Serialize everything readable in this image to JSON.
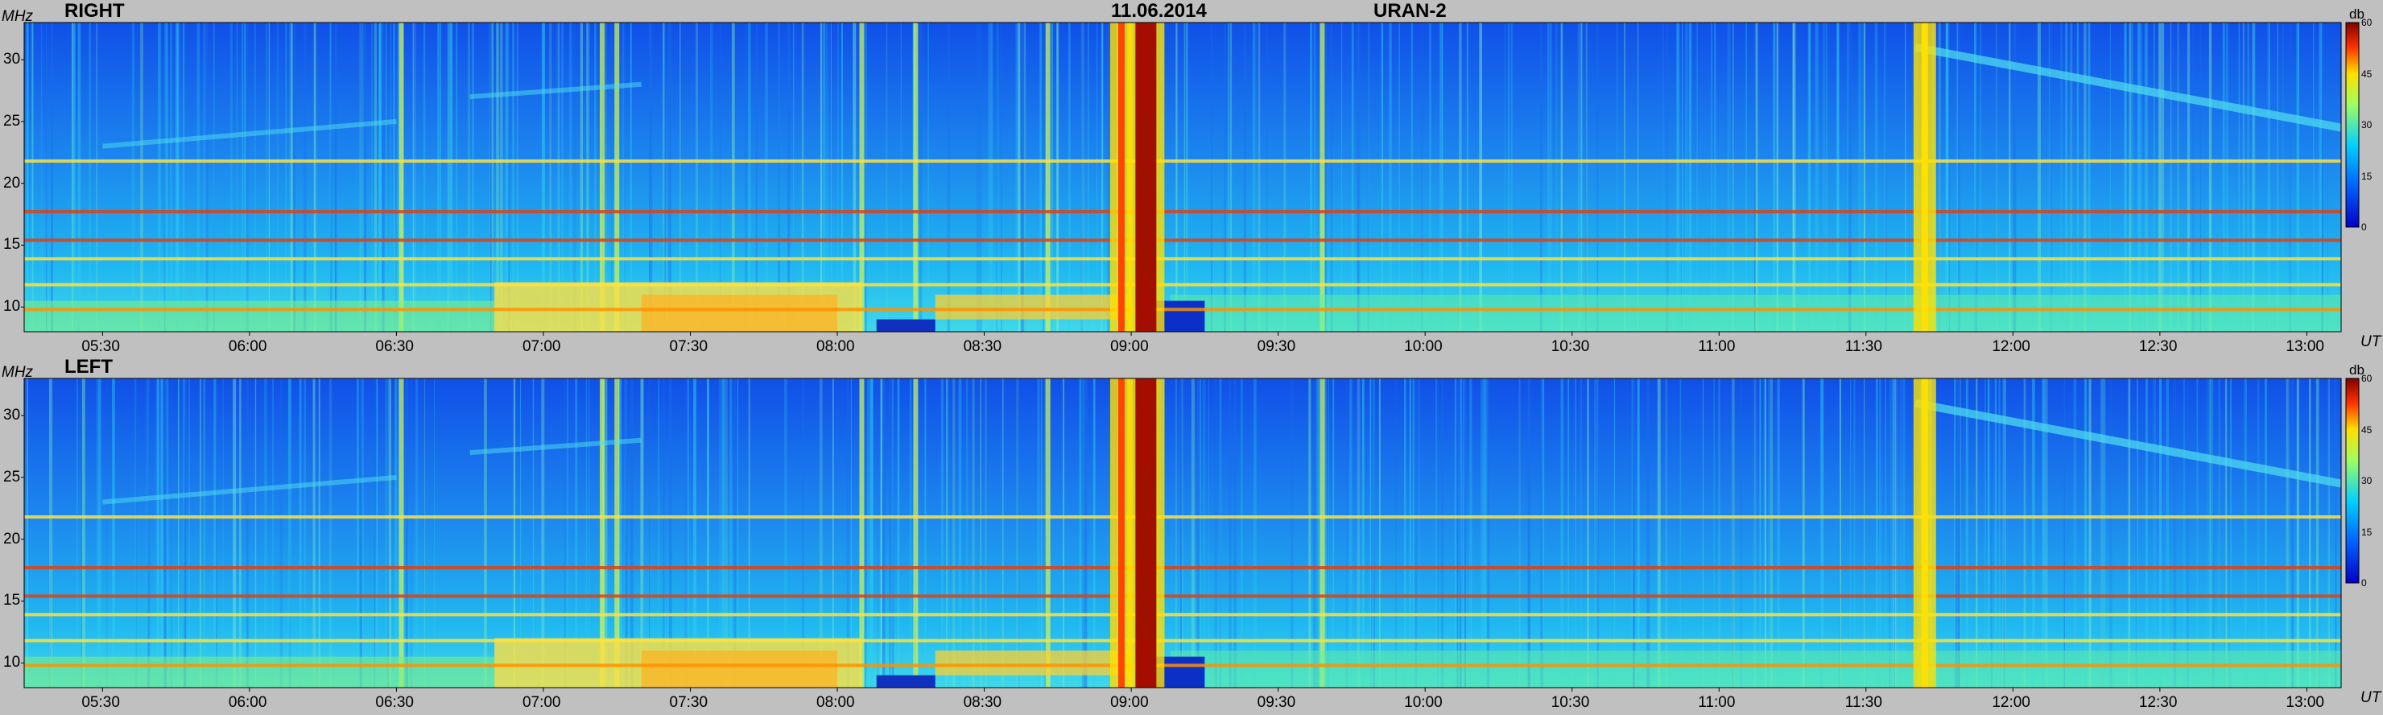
{
  "header": {
    "date": "11.06.2014",
    "instrument": "URAN-2"
  },
  "chart_data": [
    {
      "type": "heatmap",
      "title": "RIGHT",
      "ylabel": "MHz",
      "xlabel": "UT",
      "x_ticks": [
        "05:30",
        "06:00",
        "06:30",
        "07:00",
        "07:30",
        "08:00",
        "08:30",
        "09:00",
        "09:30",
        "10:00",
        "10:30",
        "11:00",
        "11:30",
        "12:00",
        "12:30",
        "13:00"
      ],
      "x_range": [
        "05:14",
        "13:07"
      ],
      "y_ticks": [
        10,
        15,
        20,
        25,
        30
      ],
      "ylim": [
        8,
        33
      ],
      "colorbar": {
        "label": "db",
        "ticks": [
          0,
          15,
          30,
          45,
          60
        ],
        "range": [
          0,
          60
        ]
      },
      "features": {
        "bursts": [
          {
            "time": "09:03",
            "intensity_db": 58
          },
          {
            "time": "08:58",
            "intensity_db": 52
          },
          {
            "time": "11:42",
            "intensity_db": 45
          }
        ],
        "interference_lines_mhz": [
          9.8,
          11.8,
          13.9,
          15.4,
          17.7,
          21.8
        ]
      }
    },
    {
      "type": "heatmap",
      "title": "LEFT",
      "ylabel": "MHz",
      "xlabel": "UT",
      "x_ticks": [
        "05:30",
        "06:00",
        "06:30",
        "07:00",
        "07:30",
        "08:00",
        "08:30",
        "09:00",
        "09:30",
        "10:00",
        "10:30",
        "11:00",
        "11:30",
        "12:00",
        "12:30",
        "13:00"
      ],
      "x_range": [
        "05:14",
        "13:07"
      ],
      "y_ticks": [
        10,
        15,
        20,
        25,
        30
      ],
      "ylim": [
        8,
        33
      ],
      "colorbar": {
        "label": "db",
        "ticks": [
          0,
          15,
          30,
          45,
          60
        ],
        "range": [
          0,
          60
        ]
      },
      "features": {
        "bursts": [
          {
            "time": "09:03",
            "intensity_db": 58
          },
          {
            "time": "08:58",
            "intensity_db": 52
          },
          {
            "time": "11:42",
            "intensity_db": 45
          }
        ],
        "interference_lines_mhz": [
          9.8,
          11.8,
          13.9,
          15.4,
          17.7,
          21.8
        ]
      }
    }
  ]
}
